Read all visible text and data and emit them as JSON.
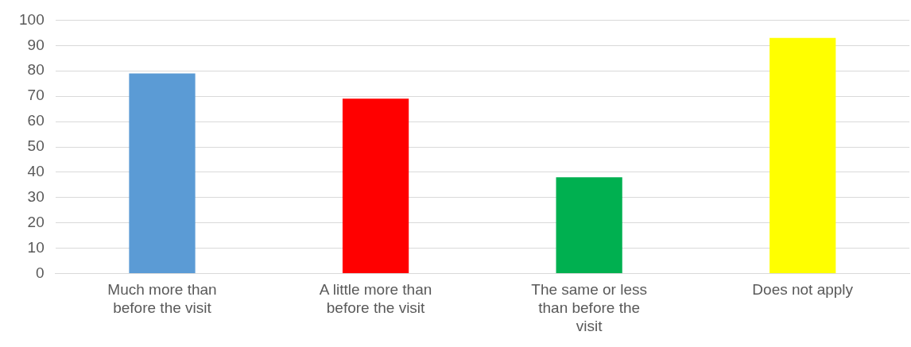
{
  "chart_data": {
    "type": "bar",
    "categories": [
      "Much more than before the visit",
      "A little more than before the visit",
      "The same or less than before the visit",
      "Does not apply"
    ],
    "values": [
      79,
      69,
      38,
      93
    ],
    "colors": [
      "#5b9bd5",
      "#ff0000",
      "#00b050",
      "#ffff00"
    ],
    "ylim": [
      0,
      100
    ],
    "yticks": [
      0,
      10,
      20,
      30,
      40,
      50,
      60,
      70,
      80,
      90,
      100
    ],
    "grid": "y",
    "legend": false
  }
}
